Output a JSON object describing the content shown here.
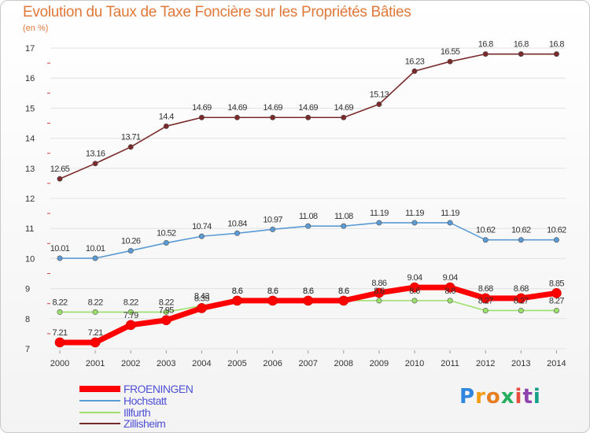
{
  "chart_data": {
    "type": "line",
    "title": "Evolution du Taux de Taxe Foncière sur les Propriétés Bâties",
    "subtitle": "(en %)",
    "x": [
      "2000",
      "2001",
      "2002",
      "2003",
      "2004",
      "2005",
      "2006",
      "2007",
      "2008",
      "2009",
      "2010",
      "2011",
      "2012",
      "2013",
      "2014"
    ],
    "y_ticks": [
      "7",
      "8",
      "9",
      "10",
      "11",
      "12",
      "13",
      "14",
      "15",
      "16",
      "17"
    ],
    "ylim": [
      7,
      17
    ],
    "series": [
      {
        "name": "FROENINGEN",
        "color": "#ff0000",
        "values": [
          7.21,
          7.21,
          7.79,
          7.95,
          8.35,
          8.6,
          8.6,
          8.6,
          8.6,
          8.86,
          9.04,
          9.04,
          8.68,
          8.68,
          8.85
        ],
        "labels": [
          "7.21",
          "7.21",
          "7.79",
          "7.95",
          "8.35",
          "8.6",
          "8.6",
          "8.6",
          "8.6",
          "8.86",
          "9.04",
          "9.04",
          "8.68",
          "8.68",
          "8.85"
        ]
      },
      {
        "name": "Hochstatt",
        "color": "#5b9bd5",
        "values": [
          10.01,
          10.01,
          10.26,
          10.52,
          10.74,
          10.84,
          10.97,
          11.08,
          11.08,
          11.19,
          11.19,
          11.19,
          10.62,
          10.62,
          10.62
        ],
        "labels": [
          "10.01",
          "10.01",
          "10.26",
          "10.52",
          "10.74",
          "10.84",
          "10.97",
          "11.08",
          "11.08",
          "11.19",
          "11.19",
          "11.19",
          "10.62",
          "10.62",
          "10.62"
        ]
      },
      {
        "name": "Illfurth",
        "color": "#9be06b",
        "values": [
          8.22,
          8.22,
          8.22,
          8.22,
          8.43,
          8.6,
          8.6,
          8.6,
          8.6,
          8.6,
          8.6,
          8.6,
          8.27,
          8.27,
          8.27
        ],
        "labels": [
          "8.22",
          "8.22",
          "8.22",
          "8.22",
          "8.43",
          "8.6",
          "8.6",
          "8.6",
          "8.6",
          "8.6",
          "8.6",
          "8.6",
          "8.27",
          "8.27",
          "8.27"
        ]
      },
      {
        "name": "Zillisheim",
        "color": "#7a2a2a",
        "values": [
          12.65,
          13.16,
          13.71,
          14.4,
          14.69,
          14.69,
          14.69,
          14.69,
          14.69,
          15.13,
          16.23,
          16.55,
          16.8,
          16.8,
          16.8
        ],
        "labels": [
          "12.65",
          "13.16",
          "13.71",
          "14.4",
          "14.69",
          "14.69",
          "14.69",
          "14.69",
          "14.69",
          "15.13",
          "16.23",
          "16.55",
          "16.8",
          "16.8",
          "16.8"
        ]
      }
    ]
  },
  "logo": {
    "letters": [
      "P",
      "r",
      "o",
      "x",
      "i",
      "t",
      "i"
    ],
    "colors": [
      "#2e86de",
      "#f39c12",
      "#e67e22",
      "#27ae60",
      "#e74c3c",
      "#8e44ad",
      "#16a085"
    ]
  }
}
